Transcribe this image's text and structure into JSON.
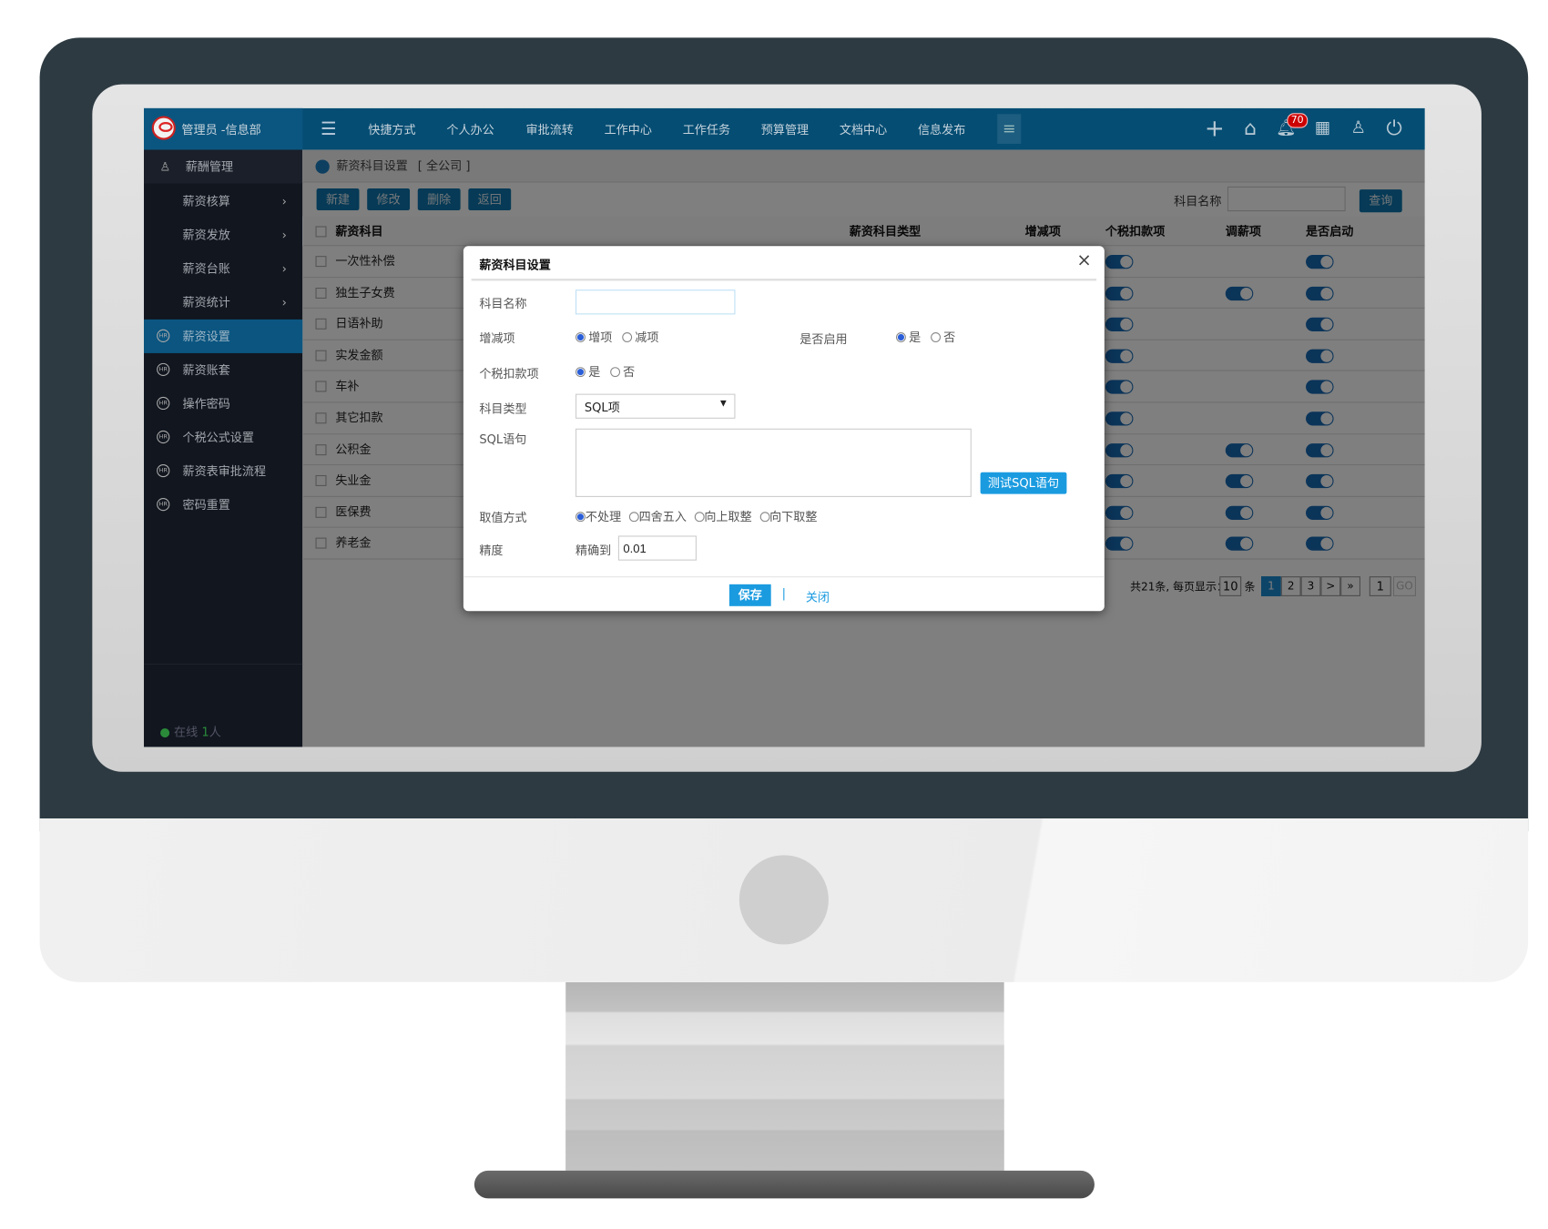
{
  "topbar": {
    "user": "管理员 -信息部",
    "nav": [
      "快捷方式",
      "个人办公",
      "审批流转",
      "工作中心",
      "工作任务",
      "预算管理",
      "文档中心",
      "信息发布"
    ],
    "notification_count": "70",
    "icons": [
      "plus-icon",
      "home-icon",
      "bell-icon",
      "apps-icon",
      "shirt-icon",
      "power-icon"
    ]
  },
  "sidebar": {
    "header": "薪酬管理",
    "items": [
      {
        "label": "薪资核算",
        "arrow": "›"
      },
      {
        "label": "薪资发放",
        "arrow": "›"
      },
      {
        "label": "薪资台账",
        "arrow": "›"
      },
      {
        "label": "薪资统计",
        "arrow": "›"
      },
      {
        "label": "薪资设置",
        "active": true
      },
      {
        "label": "薪资账套"
      },
      {
        "label": "操作密码"
      },
      {
        "label": "个税公式设置"
      },
      {
        "label": "薪资表审批流程"
      },
      {
        "label": "密码重置"
      }
    ],
    "online_prefix": "在线",
    "online_count": "1",
    "online_suffix": "人"
  },
  "breadcrumb": {
    "title": "薪资科目设置",
    "scope": "[ 全公司 ]"
  },
  "toolbar": {
    "new": "新建",
    "edit": "修改",
    "delete": "删除",
    "back": "返回",
    "search_label": "科目名称",
    "search_value": "",
    "query": "查询"
  },
  "table": {
    "headers": [
      "薪资科目",
      "薪资科目类型",
      "增减项",
      "个税扣款项",
      "调薪项",
      "是否启动"
    ],
    "rows": [
      {
        "name": "一次性补偿",
        "tax": true,
        "adjust": false,
        "enabled": true
      },
      {
        "name": "独生子女费",
        "tax": true,
        "adjust": true,
        "enabled": true
      },
      {
        "name": "日语补助",
        "tax": true,
        "adjust": false,
        "enabled": true
      },
      {
        "name": "实发金额",
        "tax": true,
        "adjust": false,
        "enabled": true
      },
      {
        "name": "车补",
        "tax": true,
        "adjust": false,
        "enabled": true
      },
      {
        "name": "其它扣款",
        "tax": true,
        "adjust": false,
        "enabled": true
      },
      {
        "name": "公积金",
        "tax": true,
        "adjust": true,
        "enabled": true
      },
      {
        "name": "失业金",
        "tax": true,
        "adjust": true,
        "enabled": true
      },
      {
        "name": "医保费",
        "tax": true,
        "adjust": true,
        "enabled": true
      },
      {
        "name": "养老金",
        "tax": true,
        "adjust": true,
        "enabled": true
      }
    ]
  },
  "pagination": {
    "summary": "共21条, 每页显示：",
    "page_size": "10",
    "unit": "条",
    "pages": [
      "1",
      "2",
      "3"
    ],
    "next": ">",
    "last": "»",
    "current": "1",
    "jump_value": "1",
    "go": "GO"
  },
  "dialog": {
    "title": "薪资科目设置",
    "close": "×",
    "name_label": "科目名称",
    "name_value": "",
    "inc_label": "增减项",
    "inc_options": [
      "增项",
      "减项"
    ],
    "inc_selected": "增项",
    "enable_label": "是否启用",
    "enable_options": [
      "是",
      "否"
    ],
    "enable_selected": "是",
    "tax_label": "个税扣款项",
    "tax_options": [
      "是",
      "否"
    ],
    "tax_selected": "是",
    "type_label": "科目类型",
    "type_value": "SQL项",
    "sql_label": "SQL语句",
    "sql_value": "",
    "test_sql": "测试SQL语句",
    "round_label": "取值方式",
    "round_options": [
      "不处理",
      "四舍五入",
      "向上取整",
      "向下取整"
    ],
    "round_selected": "不处理",
    "precision_label": "精度",
    "precision_prefix": "精确到",
    "precision_value": "0.01",
    "save": "保存",
    "sep": "|",
    "close_btn": "关闭"
  },
  "colors": {
    "topbar": "#054d73",
    "sidebar": "#11161f",
    "accent": "#1a9be0",
    "toggle": "#1769b3",
    "badge": "#cc0000"
  }
}
